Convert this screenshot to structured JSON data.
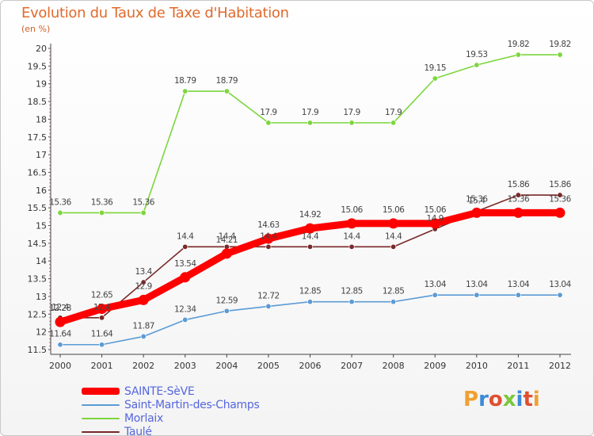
{
  "chart_data": {
    "type": "line",
    "title": "Evolution du Taux de Taxe d'Habitation",
    "unit_label": "(en %)",
    "x": [
      "2000",
      "2001",
      "2002",
      "2003",
      "2004",
      "2005",
      "2006",
      "2007",
      "2008",
      "2009",
      "2010",
      "2011",
      "2012"
    ],
    "ylim": [
      11.5,
      20
    ],
    "yticks": [
      "11.5",
      "12",
      "12.5",
      "13",
      "13.5",
      "14",
      "14.5",
      "15",
      "15.5",
      "16",
      "16.5",
      "17",
      "17.5",
      "18",
      "18.5",
      "19",
      "19.5",
      "20"
    ],
    "grid": false,
    "legend_position": "bottom-left",
    "series": [
      {
        "name": "SAINTE-SèVE",
        "color": "#ff0000",
        "values": [
          12.28,
          12.65,
          12.9,
          13.54,
          14.21,
          14.63,
          14.92,
          15.06,
          15.06,
          15.06,
          15.36,
          15.36,
          15.36
        ],
        "labels": [
          "12.28",
          "12.65",
          "12.9",
          "13.54",
          "14.21",
          "14.63",
          "14.92",
          "15.06",
          "15.06",
          "15.06",
          "15.36",
          "15.36",
          "15.36"
        ]
      },
      {
        "name": "Saint-Martin-des-Champs",
        "color": "#5b9bd5",
        "values": [
          11.64,
          11.64,
          11.87,
          12.34,
          12.59,
          12.72,
          12.85,
          12.85,
          12.85,
          13.04,
          13.04,
          13.04,
          13.04
        ],
        "labels": [
          "11.64",
          "11.64",
          "11.87",
          "12.34",
          "12.59",
          "12.72",
          "12.85",
          "12.85",
          "12.85",
          "13.04",
          "13.04",
          "13.04",
          "13.04"
        ]
      },
      {
        "name": "Morlaix",
        "color": "#7cd63c",
        "values": [
          15.36,
          15.36,
          15.36,
          18.79,
          18.79,
          17.9,
          17.9,
          17.9,
          17.9,
          19.15,
          19.53,
          19.82,
          19.82
        ],
        "labels": [
          "15.36",
          "15.36",
          "15.36",
          "18.79",
          "18.79",
          "17.9",
          "17.9",
          "17.9",
          "17.9",
          "19.15",
          "19.53",
          "19.82",
          "19.82"
        ]
      },
      {
        "name": "Taulé",
        "color": "#7a2828",
        "values": [
          12.4,
          12.4,
          13.4,
          14.4,
          14.4,
          14.4,
          14.4,
          14.4,
          14.4,
          14.9,
          15.4,
          15.86,
          15.86
        ],
        "labels": [
          "12.4",
          "12.4",
          "13.4",
          "14.4",
          "14.4",
          "14.4",
          "14.4",
          "14.4",
          "14.4",
          "14.9",
          "15.4",
          "15.86",
          "15.86"
        ]
      }
    ]
  },
  "logo": {
    "text": "Proxiti",
    "letter_colors": [
      "#f0a030",
      "#3c8ad8",
      "#e05030",
      "#7cc83c",
      "#3c8ad8",
      "#e05030",
      "#f0a030"
    ]
  }
}
